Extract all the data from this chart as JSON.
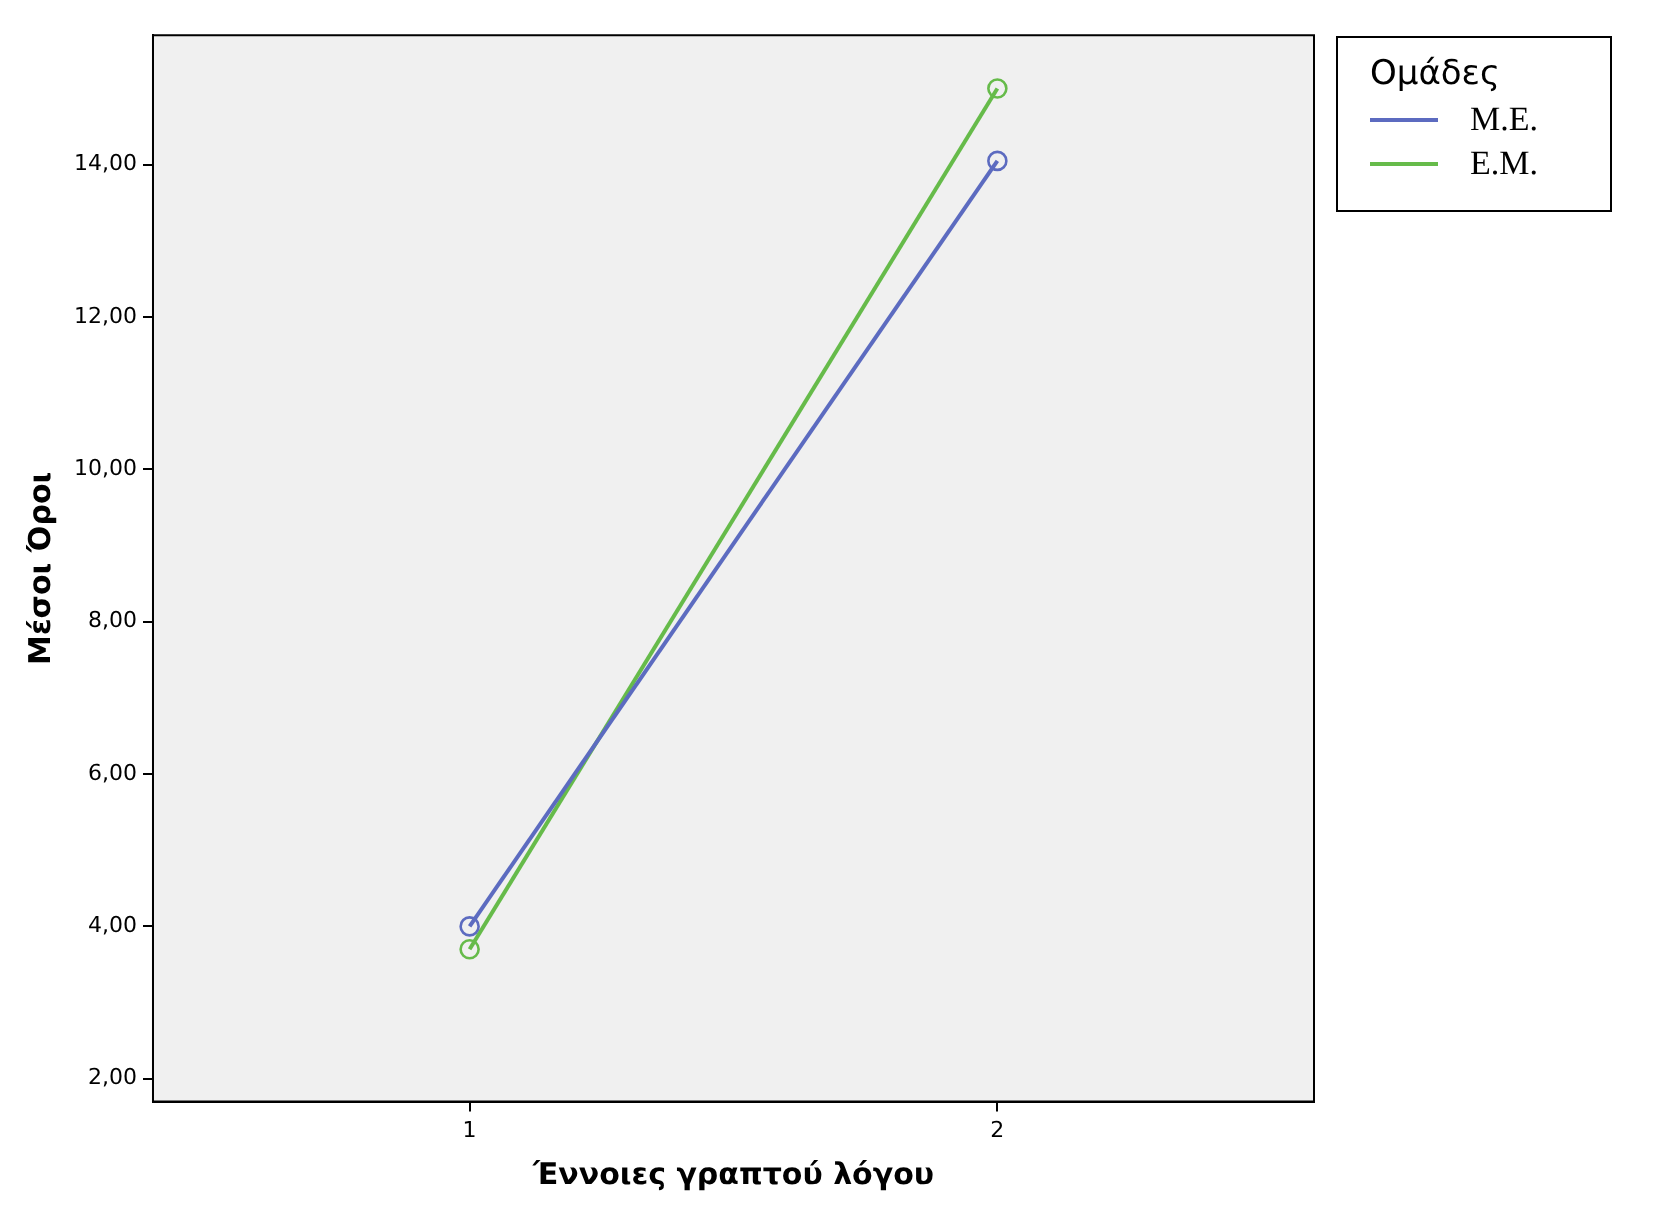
{
  "chart_data": {
    "type": "line",
    "xlabel": "Έννοιες γραπτού λόγου",
    "ylabel": "Μέσοι Όροι",
    "legend_title": "Ομάδες",
    "x": [
      1,
      2
    ],
    "series": [
      {
        "name": "Μ.Ε.",
        "color": "#5c6bc0",
        "values": [
          4.0,
          14.05
        ]
      },
      {
        "name": "Ε.Μ.",
        "color": "#66bb4a",
        "values": [
          3.7,
          15.0
        ]
      }
    ],
    "xlim": [
      0.4,
      2.6
    ],
    "xticks": [
      1,
      2
    ],
    "ylim": [
      1.7,
      15.7
    ],
    "yticks": [
      {
        "value": 2,
        "label": "2,00"
      },
      {
        "value": 4,
        "label": "4,00"
      },
      {
        "value": 6,
        "label": "6,00"
      },
      {
        "value": 8,
        "label": "8,00"
      },
      {
        "value": 10,
        "label": "10,00"
      },
      {
        "value": 12,
        "label": "12,00"
      },
      {
        "value": 14,
        "label": "14,00"
      }
    ],
    "grid": false,
    "legend": "right",
    "marker": "circle",
    "line_style": "solid"
  }
}
